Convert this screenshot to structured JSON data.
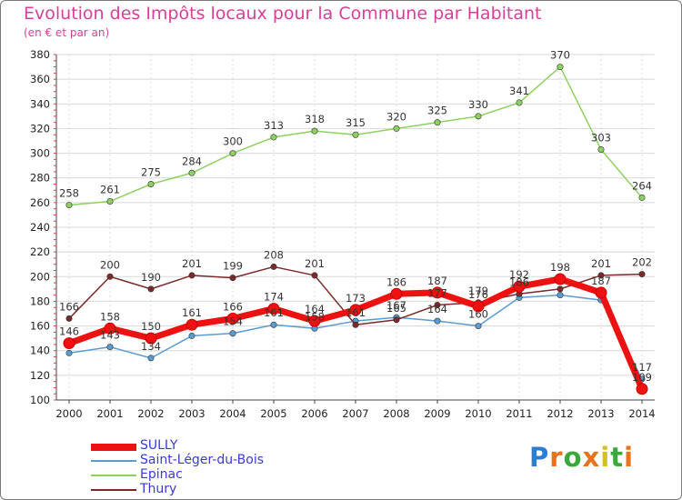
{
  "title": "Evolution des Impôts locaux pour la Commune par Habitant",
  "subtitle": "(en € et par an)",
  "logo": {
    "text": "Proxiti",
    "colors": [
      "#2a7fd4",
      "#e8731c",
      "#3aa83a",
      "#e8731c",
      "#d4c21c",
      "#3aa83a",
      "#e8731c"
    ]
  },
  "chart_data": {
    "type": "line",
    "title": "Evolution des Impôts locaux pour la Commune par Habitant",
    "subtitle": "(en € et par an)",
    "x": [
      "2000",
      "2001",
      "2002",
      "2003",
      "2004",
      "2005",
      "2006",
      "2007",
      "2008",
      "2009",
      "2010",
      "2011",
      "2012",
      "2013",
      "2014"
    ],
    "ylim": [
      100,
      380
    ],
    "yticks": [
      100,
      120,
      140,
      160,
      180,
      200,
      220,
      240,
      260,
      280,
      300,
      320,
      340,
      360,
      380
    ],
    "grid": true,
    "legend_position": "bottom-left",
    "series": [
      {
        "name": "Saint-Léger-du-Bois",
        "color": "#5b9bd0",
        "values": [
          138,
          143,
          134,
          152,
          154,
          161,
          158,
          164,
          167,
          164,
          160,
          183,
          185,
          181,
          117
        ],
        "labels": [
          "",
          "143",
          "134",
          "",
          "154",
          "161",
          "158",
          "",
          "167",
          "164",
          "160",
          "",
          "",
          "",
          "117"
        ]
      },
      {
        "name": "Epinac",
        "color": "#8ed064",
        "values": [
          258,
          261,
          275,
          284,
          300,
          313,
          318,
          315,
          320,
          325,
          330,
          341,
          370,
          303,
          264
        ],
        "labels": [
          "258",
          "261",
          "275",
          "284",
          "300",
          "313",
          "318",
          "315",
          "320",
          "325",
          "330",
          "341",
          "370",
          "303",
          "264"
        ]
      },
      {
        "name": "Thury",
        "color": "#7a2a2a",
        "values": [
          166,
          200,
          190,
          201,
          199,
          208,
          201,
          161,
          165,
          177,
          179,
          186,
          190,
          201,
          202
        ],
        "labels": [
          "166",
          "200",
          "190",
          "201",
          "199",
          "208",
          "201",
          "161",
          "165",
          "177",
          "179",
          "186",
          "",
          "201",
          "202"
        ]
      },
      {
        "name": "SULLY",
        "color": "#ee1111",
        "values": [
          146,
          158,
          150,
          161,
          166,
          174,
          164,
          173,
          186,
          187,
          176,
          192,
          198,
          187,
          109
        ],
        "labels": [
          "146",
          "158",
          "150",
          "161",
          "166",
          "174",
          "164",
          "173",
          "186",
          "187",
          "176",
          "192",
          "198",
          "187",
          "109"
        ]
      }
    ],
    "legend": [
      "SULLY",
      "Saint-Léger-du-Bois",
      "Epinac",
      "Thury"
    ]
  }
}
